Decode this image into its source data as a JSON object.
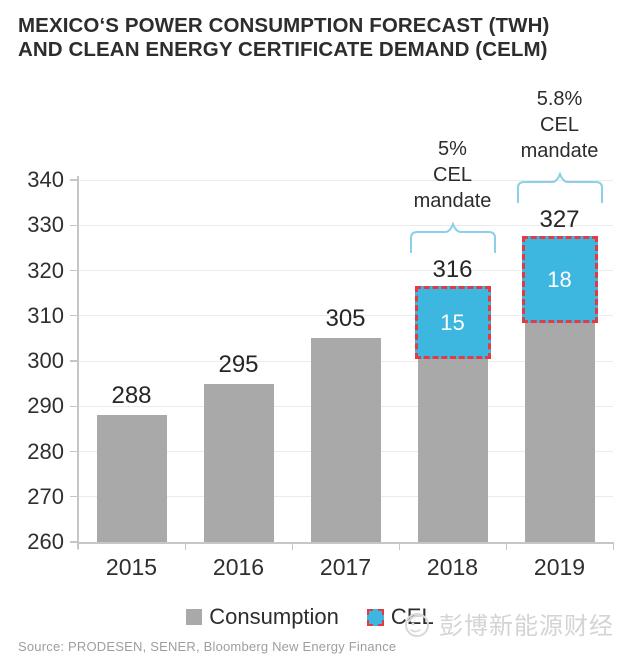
{
  "title": {
    "line1": "MEXICO‘S POWER CONSUMPTION FORECAST (TWH)",
    "line2": "AND CLEAN ENERGY CERTIFICATE DEMAND (CELM)"
  },
  "chart_data": {
    "type": "bar",
    "stacked": true,
    "title": "MEXICO'S POWER CONSUMPTION FORECAST (TWH) AND CLEAN ENERGY CERTIFICATE DEMAND (CELM)",
    "categories": [
      "2015",
      "2016",
      "2017",
      "2018",
      "2019"
    ],
    "series": [
      {
        "name": "Consumption",
        "color": "#a9a9a9",
        "values": [
          288,
          295,
          305,
          301,
          309
        ]
      },
      {
        "name": "CEL",
        "color": "#3db6e0",
        "values": [
          0,
          0,
          0,
          15,
          18
        ]
      }
    ],
    "totals": [
      288,
      295,
      305,
      316,
      327
    ],
    "bar_value_labels": [
      "288",
      "295",
      "305",
      "316",
      "327"
    ],
    "cel_value_labels": [
      "",
      "",
      "",
      "15",
      "18"
    ],
    "ylim": [
      260,
      340
    ],
    "yticks": [
      260,
      270,
      280,
      290,
      300,
      310,
      320,
      330,
      340
    ],
    "xlabel": "",
    "ylabel": "",
    "grid": true,
    "legend_position": "bottom",
    "annotations": [
      {
        "category": "2018",
        "text": "5%\nCEL\nmandate"
      },
      {
        "category": "2019",
        "text": "5.8%\nCEL\nmandate"
      }
    ],
    "colors": {
      "consumption_bar": "#a9a9a9",
      "cel_fill": "#3db6e0",
      "cel_dashed_border": "#e23b44",
      "brace": "#8ccfeb",
      "gridline": "#ebebeb",
      "axis": "#c6c6c6"
    }
  },
  "legend": {
    "items": [
      {
        "label": "Consumption",
        "color": "#a9a9a9"
      },
      {
        "label": "CEL",
        "color": "#3db6e0"
      }
    ]
  },
  "source": {
    "text": "Source:  PRODESEN, SENER, Bloomberg New Energy Finance"
  },
  "watermark": {
    "text": "彭博新能源财经"
  }
}
